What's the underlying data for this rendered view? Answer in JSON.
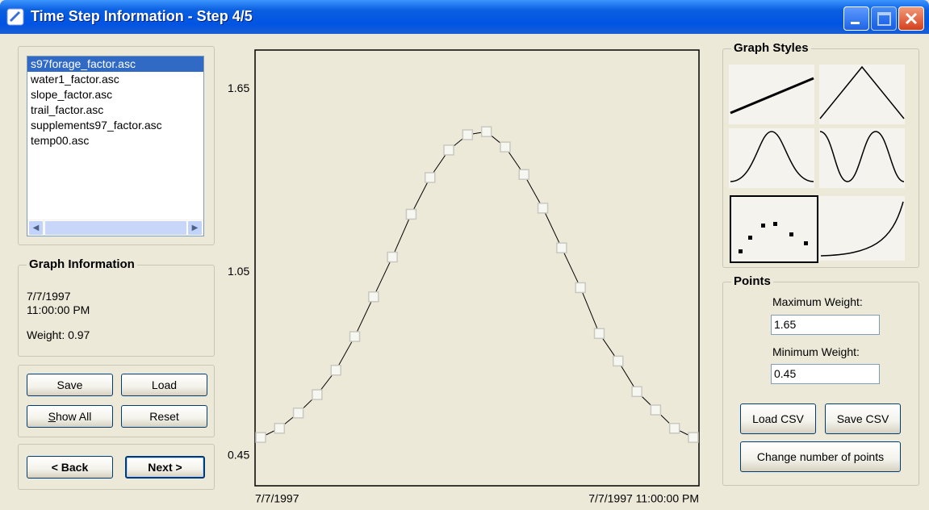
{
  "window": {
    "title": "Time Step Information - Step 4/5"
  },
  "file_list": {
    "items": [
      "s97forage_factor.asc",
      "water1_factor.asc",
      "slope_factor.asc",
      "trail_factor.asc",
      "supplements97_factor.asc",
      "temp00.asc"
    ]
  },
  "graph_information": {
    "title": "Graph Information",
    "date": "7/7/1997",
    "time": "11:00:00 PM",
    "weight": "Weight: 0.97"
  },
  "buttons": {
    "save": "Save",
    "load": "Load",
    "show_all": "Show All",
    "reset": "Reset",
    "back": "< Back",
    "next": "Next >"
  },
  "graph_styles": {
    "title": "Graph Styles"
  },
  "points": {
    "title": "Points",
    "max_label": "Maximum Weight:",
    "max_value": "1.65",
    "min_label": "Minimum Weight:",
    "min_value": "0.45",
    "load_csv": "Load CSV",
    "save_csv": "Save CSV",
    "change_points": "Change number of points"
  },
  "chart_data": {
    "type": "line",
    "categories": [
      "7/7/1997",
      null,
      null,
      null,
      null,
      null,
      null,
      null,
      null,
      null,
      null,
      null,
      null,
      null,
      null,
      null,
      null,
      null,
      null,
      null,
      null,
      null,
      null,
      "7/7/1997 11:00:00 PM"
    ],
    "values": [
      0.51,
      0.54,
      0.59,
      0.65,
      0.73,
      0.84,
      0.97,
      1.1,
      1.24,
      1.36,
      1.45,
      1.5,
      1.51,
      1.46,
      1.37,
      1.26,
      1.13,
      1.0,
      0.85,
      0.76,
      0.66,
      0.6,
      0.54,
      0.51
    ],
    "color": "#000000",
    "ylim": [
      0.352,
      1.777
    ],
    "yticks": [
      0.45,
      1.05,
      1.65
    ],
    "grid": false
  }
}
